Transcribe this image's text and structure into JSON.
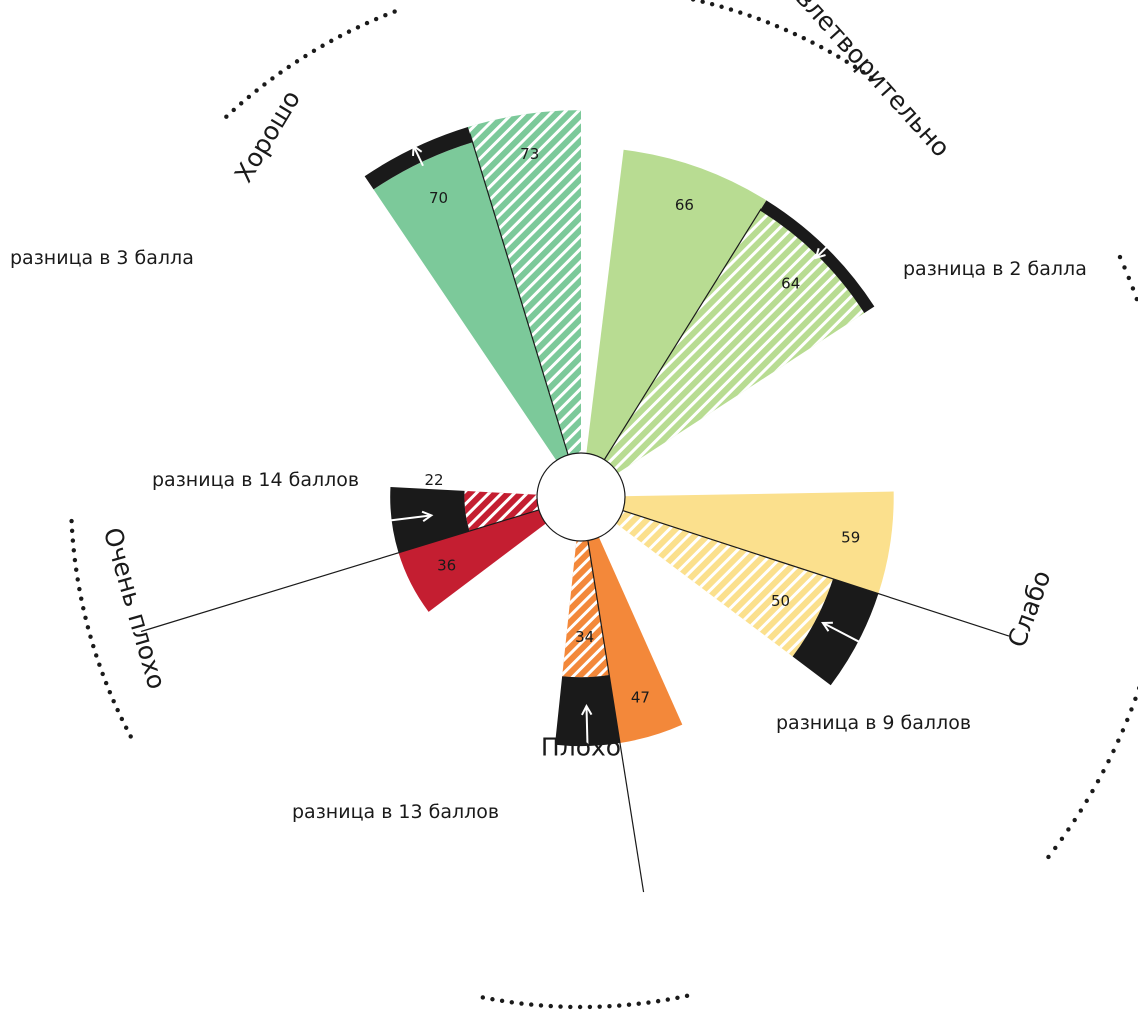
{
  "chart_data": {
    "type": "radial-bar",
    "series": [
      {
        "values": [
          70,
          66,
          59,
          47,
          36
        ]
      },
      {
        "values": [
          73,
          64,
          50,
          34,
          22
        ]
      }
    ],
    "categories": [
      {
        "name": "Хорошо",
        "a": 70,
        "b": 73,
        "a_label": "70",
        "b_label": "73",
        "note": "разница в 3 балла",
        "color": "#7cc99a",
        "b_color_emphasis": "#1a1a1a"
      },
      {
        "name": "Удовлетворительно",
        "a": 66,
        "b": 64,
        "a_label": "66",
        "b_label": "64",
        "note": "разница в 2 балла",
        "color": "#b8dc92",
        "b_color_emphasis": "#1a1a1a"
      },
      {
        "name": "Слабо",
        "a": 59,
        "b": 50,
        "a_label": "59",
        "b_label": "50",
        "note": "разница в 9 баллов",
        "color": "#fbe08d",
        "b_color_emphasis": "#1a1a1a"
      },
      {
        "name": "Плохо",
        "a": 47,
        "b": 34,
        "a_label": "47",
        "b_label": "34",
        "note": "разница в 13 баллов",
        "color": "#f3883a",
        "b_color_emphasis": "#1a1a1a"
      },
      {
        "name": "Очень плохо",
        "a": 36,
        "b": 22,
        "a_label": "36",
        "b_label": "22",
        "note": "разница в 14 баллов",
        "color": "#c41e31",
        "b_color_emphasis": "#c41e31"
      }
    ],
    "gap_color": "#1a1a1a"
  }
}
